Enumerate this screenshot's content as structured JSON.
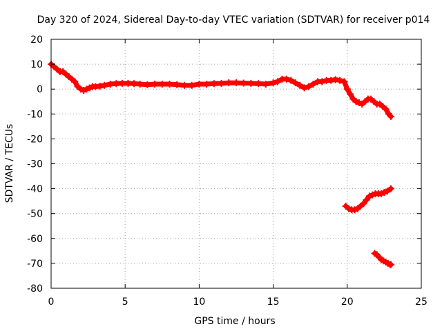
{
  "chart_data": {
    "type": "scatter",
    "title": "Day 320 of 2024, Sidereal Day-to-day VTEC variation (SDTVAR) for receiver p014",
    "xlabel": "GPS time / hours",
    "ylabel": "SDTVAR / TECUs",
    "xlim": [
      0,
      25
    ],
    "ylim": [
      -80,
      20
    ],
    "xticks": [
      0,
      5,
      10,
      15,
      20,
      25
    ],
    "yticks": [
      -80,
      -70,
      -60,
      -50,
      -40,
      -30,
      -20,
      -10,
      0,
      10,
      20
    ],
    "grid": true,
    "legend": "none",
    "marker_color": "#ff0000",
    "series": [
      {
        "x": [
          0.0,
          0.2,
          0.4,
          0.6,
          0.8,
          1.0,
          1.2,
          1.4,
          1.6,
          1.8,
          2.0,
          2.2,
          2.4,
          2.6,
          2.8,
          3.0,
          3.3,
          3.6,
          4.0,
          4.4,
          4.8,
          5.2,
          5.6,
          6.0,
          6.5,
          7.0,
          7.5,
          8.0,
          8.5,
          9.0,
          9.5,
          10.0,
          10.5,
          11.0,
          11.5,
          12.0,
          12.5,
          13.0,
          13.5,
          14.0,
          14.5,
          15.0,
          15.3,
          15.6,
          15.9,
          16.2,
          16.5,
          16.8,
          17.1,
          17.4,
          17.7,
          18.0,
          18.3,
          18.6,
          18.9,
          19.2,
          19.5,
          19.8,
          20.0,
          20.2,
          20.4,
          20.6,
          20.8,
          21.0,
          21.2,
          21.4,
          21.6,
          21.8,
          22.0,
          22.2,
          22.4,
          22.6,
          22.8,
          22.95
        ],
        "y": [
          10,
          9,
          8,
          7,
          7,
          6,
          5,
          4,
          3,
          1,
          0,
          -0.5,
          0,
          0.5,
          1,
          1,
          1.2,
          1.5,
          2,
          2.2,
          2.3,
          2.3,
          2.2,
          2,
          1.8,
          2,
          2,
          2,
          1.8,
          1.5,
          1.5,
          2,
          2,
          2.2,
          2.3,
          2.5,
          2.5,
          2.4,
          2.3,
          2.2,
          2,
          2.5,
          3,
          4,
          4,
          3.5,
          2.5,
          1.5,
          0.5,
          1,
          2,
          3,
          3,
          3.5,
          3.5,
          3.8,
          3.5,
          3,
          0,
          -2,
          -4,
          -5,
          -5.5,
          -6,
          -5,
          -4,
          -4,
          -5,
          -6,
          -6,
          -7,
          -8,
          -10,
          -11
        ]
      },
      {
        "x": [
          19.9,
          20.1,
          20.3,
          20.5,
          20.7,
          20.9,
          21.1,
          21.3,
          21.5,
          21.7,
          21.9,
          22.1,
          22.3,
          22.5,
          22.7,
          22.95
        ],
        "y": [
          -47,
          -48,
          -48.5,
          -48.5,
          -48,
          -47,
          -46,
          -44.5,
          -43,
          -42.5,
          -42,
          -42,
          -42,
          -41.5,
          -41,
          -40
        ]
      },
      {
        "x": [
          21.85,
          22.0,
          22.15,
          22.3,
          22.45,
          22.6,
          22.75,
          22.9,
          22.95
        ],
        "y": [
          -66,
          -66.5,
          -67.5,
          -68.5,
          -69,
          -69.5,
          -70,
          -70.5,
          -70.5
        ]
      }
    ]
  }
}
